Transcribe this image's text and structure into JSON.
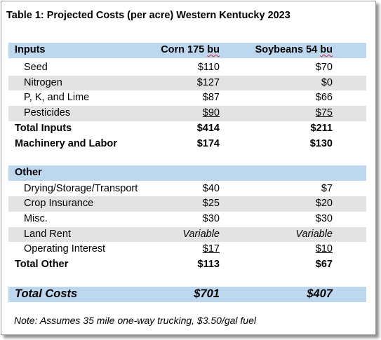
{
  "title": "Table 1: Projected Costs (per acre) Western Kentucky 2023",
  "header": {
    "label": "Inputs",
    "col1_text": "Corn 175 ",
    "col1_unit": "bu",
    "col2_text": "Soybeans 54 ",
    "col2_unit": "bu"
  },
  "inputs": [
    {
      "label": "Seed",
      "corn": "$110",
      "soy": "$70"
    },
    {
      "label": "Nitrogen",
      "corn": "$127",
      "soy": "$0"
    },
    {
      "label": "P, K, and Lime",
      "corn": "$87",
      "soy": "$66"
    },
    {
      "label": "Pesticides",
      "corn": "$90",
      "soy": "$75"
    }
  ],
  "total_inputs": {
    "label": "Total Inputs",
    "corn": "$414",
    "soy": "$211"
  },
  "machinery": {
    "label": "Machinery and Labor",
    "corn": "$174",
    "soy": "$130"
  },
  "other_header": {
    "label": "Other"
  },
  "other": [
    {
      "label": "Drying/Storage/Transport",
      "corn": "$40",
      "soy": "$7"
    },
    {
      "label": "Crop Insurance",
      "corn": "$25",
      "soy": "$20"
    },
    {
      "label": "Misc.",
      "corn": "$30",
      "soy": "$30"
    },
    {
      "label": "Land Rent",
      "corn": "Variable",
      "soy": "Variable"
    },
    {
      "label": "Operating Interest",
      "corn": "$17",
      "soy": "$10"
    }
  ],
  "total_other": {
    "label": "Total Other",
    "corn": "$113",
    "soy": "$67"
  },
  "total_costs": {
    "label": "Total Costs",
    "corn": "$701",
    "soy": "$407"
  },
  "note": "Note: Assumes 35 mile one-way trucking, $3.50/gal fuel"
}
